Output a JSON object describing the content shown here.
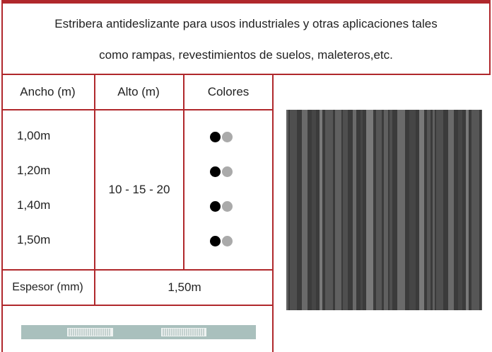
{
  "description": [
    "Estribera antideslizante para usos industriales y otras aplicaciones tales",
    "como rampas, revestimientos de suelos, maleteros,etc."
  ],
  "table": {
    "headers": [
      "Ancho (m)",
      "Alto (m)",
      "Colores"
    ],
    "widths": [
      "1,00m",
      "1,20m",
      "1,40m",
      "1,50m"
    ],
    "height": "10 - 15 - 20",
    "thickness_label": "Espesor (mm)",
    "thickness_value": "1,50m"
  }
}
